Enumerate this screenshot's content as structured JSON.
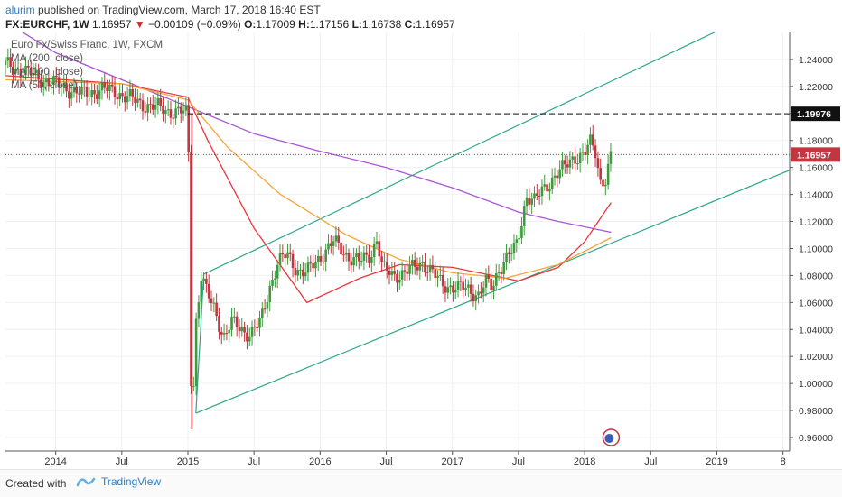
{
  "header": {
    "author": "alurim",
    "published_text": "published on TradingView.com, March 17, 2018 16:40 EST",
    "symbol": "FX:EURCHF, 1W",
    "last": "1.16957",
    "change_arrow": "▼",
    "change": "−0.00109 (−0.09%)",
    "o_label": "O:",
    "o_value": "1.17009",
    "h_label": "H:",
    "h_value": "1.17156",
    "l_label": "L:",
    "l_value": "1.16738",
    "c_label": "C:",
    "c_value": "1.16957"
  },
  "legend": {
    "title": "Euro Fx/Swiss Franc, 1W, FXCM",
    "ma200": "MA (200, close)",
    "ma100": "MA (100, close)",
    "ma50": "MA (50, close)"
  },
  "footer": {
    "created_with": "Created with",
    "brand": "TradingView"
  },
  "colors": {
    "up": "#3f9a3f",
    "down": "#c3353f",
    "channel": "#2ea88a",
    "ma200": "#a855d8",
    "ma100": "#e8373a",
    "ma50": "#f4a53b",
    "price_line": "#c3353f"
  },
  "chart_data": {
    "type": "line",
    "title": "Euro Fx/Swiss Franc, 1W, FXCM",
    "xlabel": "",
    "ylabel": "",
    "y_axis_side": "right",
    "ylim": [
      0.95,
      1.26
    ],
    "x_ticks": [
      {
        "label": "2014",
        "t": 2014.0
      },
      {
        "label": "Jul",
        "t": 2014.5
      },
      {
        "label": "2015",
        "t": 2015.0
      },
      {
        "label": "Jul",
        "t": 2015.5
      },
      {
        "label": "2016",
        "t": 2016.0
      },
      {
        "label": "Jul",
        "t": 2016.5
      },
      {
        "label": "2017",
        "t": 2017.0
      },
      {
        "label": "Jul",
        "t": 2017.5
      },
      {
        "label": "2018",
        "t": 2018.0
      },
      {
        "label": "Jul",
        "t": 2018.5
      },
      {
        "label": "2019",
        "t": 2019.0
      },
      {
        "label": "8",
        "t": 2019.5
      }
    ],
    "xlim": [
      2013.62,
      2019.55
    ],
    "y_ticks": [
      "0.96000",
      "0.98000",
      "1.00000",
      "1.02000",
      "1.04000",
      "1.06000",
      "1.08000",
      "1.10000",
      "1.12000",
      "1.14000",
      "1.16000",
      "1.18000",
      "1.20000",
      "1.22000",
      "1.24000"
    ],
    "price_series": [
      [
        2013.62,
        1.236
      ],
      [
        2013.75,
        1.232
      ],
      [
        2013.9,
        1.225
      ],
      [
        2014.0,
        1.222
      ],
      [
        2014.1,
        1.218
      ],
      [
        2014.2,
        1.214
      ],
      [
        2014.35,
        1.218
      ],
      [
        2014.45,
        1.216
      ],
      [
        2014.55,
        1.212
      ],
      [
        2014.65,
        1.207
      ],
      [
        2014.75,
        1.205
      ],
      [
        2014.85,
        1.202
      ],
      [
        2014.95,
        1.201
      ],
      [
        2015.0,
        1.2
      ],
      [
        2015.03,
        1.005
      ],
      [
        2015.06,
        1.045
      ],
      [
        2015.1,
        1.08
      ],
      [
        2015.15,
        1.065
      ],
      [
        2015.2,
        1.055
      ],
      [
        2015.27,
        1.035
      ],
      [
        2015.33,
        1.045
      ],
      [
        2015.4,
        1.04
      ],
      [
        2015.47,
        1.037
      ],
      [
        2015.55,
        1.045
      ],
      [
        2015.62,
        1.072
      ],
      [
        2015.68,
        1.09
      ],
      [
        2015.75,
        1.095
      ],
      [
        2015.82,
        1.085
      ],
      [
        2015.9,
        1.082
      ],
      [
        2015.97,
        1.09
      ],
      [
        2016.05,
        1.1
      ],
      [
        2016.1,
        1.105
      ],
      [
        2016.2,
        1.095
      ],
      [
        2016.3,
        1.09
      ],
      [
        2016.38,
        1.095
      ],
      [
        2016.43,
        1.108
      ],
      [
        2016.47,
        1.085
      ],
      [
        2016.55,
        1.08
      ],
      [
        2016.62,
        1.082
      ],
      [
        2016.7,
        1.085
      ],
      [
        2016.78,
        1.09
      ],
      [
        2016.85,
        1.082
      ],
      [
        2016.92,
        1.073
      ],
      [
        2017.0,
        1.072
      ],
      [
        2017.1,
        1.07
      ],
      [
        2017.2,
        1.066
      ],
      [
        2017.25,
        1.075
      ],
      [
        2017.3,
        1.07
      ],
      [
        2017.35,
        1.085
      ],
      [
        2017.42,
        1.095
      ],
      [
        2017.48,
        1.1
      ],
      [
        2017.52,
        1.118
      ],
      [
        2017.56,
        1.14
      ],
      [
        2017.62,
        1.135
      ],
      [
        2017.7,
        1.145
      ],
      [
        2017.78,
        1.155
      ],
      [
        2017.85,
        1.16
      ],
      [
        2017.92,
        1.168
      ],
      [
        2018.0,
        1.17
      ],
      [
        2018.04,
        1.178
      ],
      [
        2018.08,
        1.172
      ],
      [
        2018.12,
        1.15
      ],
      [
        2018.16,
        1.152
      ],
      [
        2018.2,
        1.169
      ]
    ],
    "series": [
      {
        "name": "MA (200, close)",
        "values": [
          [
            2013.62,
            1.268
          ],
          [
            2014.0,
            1.245
          ],
          [
            2014.5,
            1.225
          ],
          [
            2015.0,
            1.205
          ],
          [
            2015.5,
            1.185
          ],
          [
            2016.0,
            1.172
          ],
          [
            2016.5,
            1.16
          ],
          [
            2017.0,
            1.145
          ],
          [
            2017.5,
            1.127
          ],
          [
            2017.8,
            1.12
          ],
          [
            2018.2,
            1.112
          ]
        ]
      },
      {
        "name": "MA (100, close)",
        "values": [
          [
            2013.62,
            1.228
          ],
          [
            2014.5,
            1.222
          ],
          [
            2015.0,
            1.212
          ],
          [
            2015.15,
            1.18
          ],
          [
            2015.5,
            1.115
          ],
          [
            2015.9,
            1.06
          ],
          [
            2016.3,
            1.078
          ],
          [
            2016.6,
            1.088
          ],
          [
            2017.0,
            1.086
          ],
          [
            2017.3,
            1.08
          ],
          [
            2017.5,
            1.076
          ],
          [
            2017.8,
            1.086
          ],
          [
            2018.0,
            1.105
          ],
          [
            2018.2,
            1.134
          ]
        ]
      },
      {
        "name": "MA (50, close)",
        "values": [
          [
            2013.62,
            1.225
          ],
          [
            2014.5,
            1.222
          ],
          [
            2015.0,
            1.21
          ],
          [
            2015.3,
            1.175
          ],
          [
            2015.7,
            1.14
          ],
          [
            2016.2,
            1.11
          ],
          [
            2016.6,
            1.092
          ],
          [
            2017.0,
            1.082
          ],
          [
            2017.4,
            1.078
          ],
          [
            2017.8,
            1.088
          ],
          [
            2018.0,
            1.098
          ],
          [
            2018.2,
            1.108
          ]
        ]
      }
    ],
    "channel": {
      "upper": [
        [
          2015.12,
          1.081
        ],
        [
          2018.98,
          1.26
        ]
      ],
      "lower": [
        [
          2015.06,
          0.978
        ],
        [
          2019.55,
          1.158
        ]
      ]
    },
    "horizontal_levels": [
      {
        "value": 1.19976,
        "label": "1.19976",
        "style": "dashed",
        "x_start": 2015.0
      },
      {
        "value": 1.16957,
        "label": "1.16957",
        "style": "dotted"
      }
    ],
    "grid": true,
    "legend_position": "top-left"
  }
}
